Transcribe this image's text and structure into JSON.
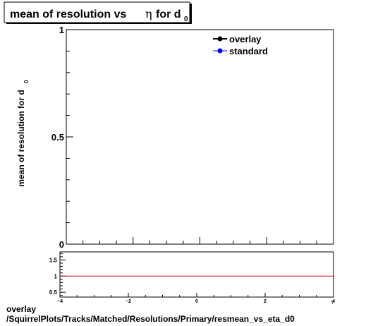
{
  "chart_data": [
    {
      "type": "line",
      "title": {
        "main": "mean of resolution vs",
        "eta": "η",
        "for": "for d",
        "sub": "0"
      },
      "ylabel": {
        "main": "mean of resolution for d",
        "sub": "0"
      },
      "xlabel": "",
      "xlim": [
        -4,
        4
      ],
      "ylim": [
        0,
        1
      ],
      "yticks": [
        "0",
        "0.5",
        "1"
      ],
      "grid": false,
      "legend_position": "top-right",
      "series": [
        {
          "name": "overlay",
          "color": "#000000",
          "marker": "circle",
          "x": [],
          "y": []
        },
        {
          "name": "standard",
          "color": "#0000ff",
          "marker": "circle",
          "x": [],
          "y": []
        }
      ]
    },
    {
      "type": "line",
      "title": "",
      "xlim": [
        -4,
        4
      ],
      "ylim": [
        0.35,
        1.75
      ],
      "xticks": [
        "−4",
        "−2",
        "0",
        "2",
        "4"
      ],
      "yticks": [
        "0.5",
        "1",
        "1.5"
      ],
      "reference_line": {
        "y": 1,
        "color": "#cc0000"
      },
      "series": []
    }
  ],
  "footer": {
    "line1": "overlay",
    "line2": "/SquirrelPlots/Tracks/Matched/Resolutions/Primary/resmean_vs_eta_d0"
  }
}
